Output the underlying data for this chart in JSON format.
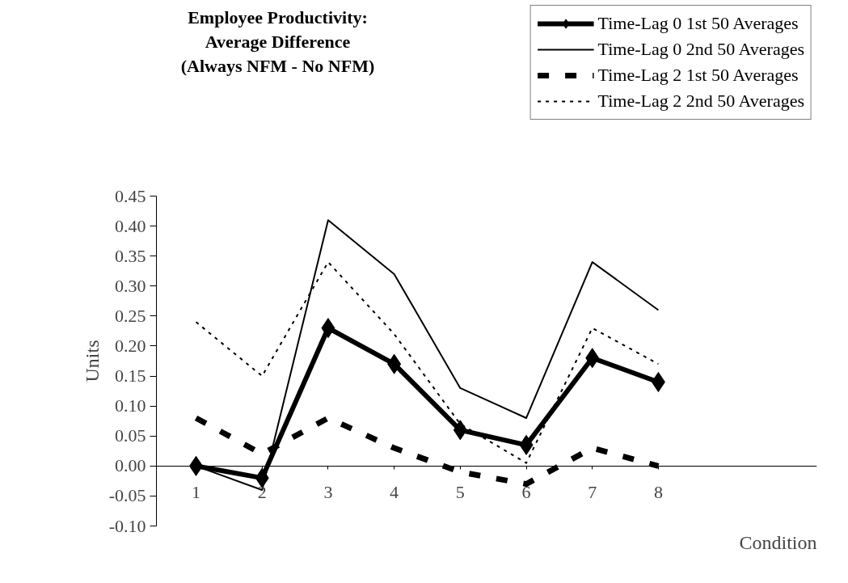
{
  "chart_data": {
    "type": "line",
    "title": "Employee Productivity:\nAverage Difference\n(Always NFM - No NFM)",
    "xlabel": "Condition",
    "ylabel": "Units",
    "x": [
      1,
      2,
      3,
      4,
      5,
      6,
      7,
      8
    ],
    "xlim": [
      0.4,
      10.4
    ],
    "xticks": [
      1,
      2,
      3,
      4,
      5,
      6,
      7,
      8
    ],
    "ylim": [
      -0.1,
      0.45
    ],
    "yticks": [
      {
        "value": -0.1,
        "label": "-0.10"
      },
      {
        "value": -0.05,
        "label": "-0.05"
      },
      {
        "value": 0,
        "label": "0.00"
      },
      {
        "value": 0.05,
        "label": "0.05"
      },
      {
        "value": 0.1,
        "label": "0.10"
      },
      {
        "value": 0.15,
        "label": "0.15"
      },
      {
        "value": 0.2,
        "label": "0.20"
      },
      {
        "value": 0.25,
        "label": "0.25"
      },
      {
        "value": 0.3,
        "label": "0.30"
      },
      {
        "value": 0.35,
        "label": "0.35"
      },
      {
        "value": 0.4,
        "label": "0.40"
      },
      {
        "value": 0.45,
        "label": "0.45"
      }
    ],
    "grid": false,
    "legend": "top right",
    "series": [
      {
        "name": "Time-Lag 0 1st 50 Averages",
        "color": "#000000",
        "marker": "diamond",
        "line_style": "solid",
        "values": [
          0.0,
          -0.02,
          0.23,
          0.17,
          0.06,
          0.035,
          0.18,
          0.14
        ]
      },
      {
        "name": "Time-Lag 0 2nd 50 Averages",
        "color": "#000000",
        "line_style": "solid",
        "values": [
          0.0,
          -0.04,
          0.41,
          0.32,
          0.13,
          0.08,
          0.34,
          0.26
        ]
      },
      {
        "name": "Time-Lag 2 1st 50 Averages",
        "color": "#000000",
        "line_style": "dashed",
        "values": [
          0.08,
          0.02,
          0.08,
          0.03,
          -0.01,
          -0.03,
          0.03,
          0.0
        ]
      },
      {
        "name": "Time-Lag 2 2nd 50 Averages",
        "color": "#000000",
        "line_style": "dotted",
        "values": [
          0.24,
          0.15,
          0.34,
          0.22,
          0.07,
          0.005,
          0.23,
          0.17
        ]
      }
    ]
  }
}
